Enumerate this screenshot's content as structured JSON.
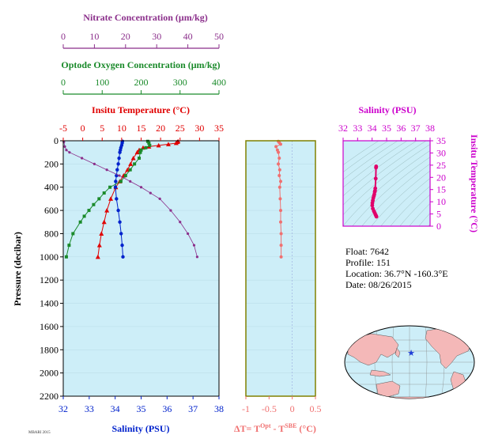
{
  "colors": {
    "nitrate": "#8b2f8b",
    "oxygen": "#1a8a2a",
    "temperature": "#e00000",
    "salinity": "#0022cc",
    "delta_t": "#f07070",
    "ts_axis": "#cc00cc",
    "panel_bg": "#cdeef8",
    "frame_olive": "#808000",
    "land": "#f4b8b8",
    "ocean": "#cdeef8"
  },
  "labels": {
    "nitrate_title": "Nitrate Concentration (μm/kg)",
    "oxygen_title": "Optode Oxygen Concentration (μm/kg)",
    "temperature_title": "Insitu Temperature (°C)",
    "pressure_title": "Pressure (decibar)",
    "salinity_title": "Salinity (PSU)",
    "dt_title_main": "ΔT= T",
    "dt_title_sup1": "Opt",
    "dt_title_mid": " - T",
    "dt_title_sup2": "SBE",
    "dt_title_unit": " (°C)",
    "ts_salinity_title": "Salinity (PSU)",
    "ts_temperature_title": "Insitu Temperature (°C)",
    "footer_stamp": "MBARI 2015"
  },
  "info": {
    "float_line": "Float:  7642",
    "profile_line": "Profile:  151",
    "location_line": "Location:  36.7°N  -160.3°E",
    "date_line": "Date:  08/26/2015"
  },
  "chart_data": [
    {
      "type": "line",
      "title": "",
      "ylabel": "Pressure (decibar)",
      "ylim": [
        2200,
        0
      ],
      "yticks": [
        0,
        200,
        400,
        600,
        800,
        1000,
        1200,
        1400,
        1600,
        1800,
        2000,
        2200
      ],
      "axes": {
        "nitrate": {
          "label": "Nitrate Concentration (μm/kg)",
          "range": [
            0,
            50
          ],
          "ticks": [
            0,
            10,
            20,
            30,
            40,
            50
          ]
        },
        "oxygen": {
          "label": "Optode Oxygen Concentration (μm/kg)",
          "range": [
            0,
            400
          ],
          "ticks": [
            0,
            100,
            200,
            300,
            400
          ]
        },
        "temperature": {
          "label": "Insitu Temperature (°C)",
          "range": [
            -5,
            35
          ],
          "ticks": [
            -5,
            0,
            5,
            10,
            15,
            20,
            25,
            30,
            35
          ]
        },
        "salinity": {
          "label": "Salinity (PSU)",
          "range": [
            32,
            38
          ],
          "ticks": [
            32,
            33,
            34,
            35,
            36,
            37,
            38
          ]
        }
      },
      "series": [
        {
          "name": "Insitu Temperature (°C)",
          "axis": "temperature",
          "marker": "triangle",
          "pressure": [
            5,
            10,
            20,
            30,
            40,
            50,
            60,
            80,
            100,
            150,
            200,
            250,
            300,
            350,
            400,
            500,
            600,
            700,
            800,
            900,
            1000
          ],
          "values": [
            24.5,
            24.3,
            24.0,
            22.0,
            19.5,
            17.0,
            15.5,
            14.5,
            14.0,
            13.0,
            12.3,
            11.5,
            10.5,
            9.5,
            8.5,
            7.2,
            6.2,
            5.5,
            4.8,
            4.3,
            3.9
          ]
        },
        {
          "name": "Salinity (PSU)",
          "axis": "salinity",
          "marker": "dot",
          "pressure": [
            5,
            20,
            40,
            60,
            80,
            100,
            150,
            200,
            250,
            300,
            350,
            400,
            500,
            600,
            700,
            800,
            900,
            1000
          ],
          "values": [
            34.28,
            34.27,
            34.25,
            34.22,
            34.2,
            34.18,
            34.15,
            34.12,
            34.08,
            34.05,
            34.02,
            34.01,
            34.05,
            34.12,
            34.18,
            34.23,
            34.27,
            34.3
          ]
        },
        {
          "name": "Optode Oxygen Concentration (μm/kg)",
          "axis": "oxygen",
          "marker": "square",
          "pressure": [
            5,
            20,
            40,
            60,
            80,
            100,
            150,
            200,
            250,
            300,
            350,
            400,
            450,
            500,
            550,
            600,
            650,
            700,
            800,
            900,
            1000
          ],
          "values": [
            217,
            220,
            222,
            212,
            200,
            198,
            195,
            183,
            172,
            160,
            148,
            120,
            105,
            92,
            78,
            66,
            54,
            44,
            25,
            15,
            8
          ]
        },
        {
          "name": "Nitrate Concentration (μm/kg)",
          "axis": "nitrate",
          "marker": "dot",
          "pressure": [
            10,
            50,
            80,
            100,
            150,
            200,
            250,
            300,
            350,
            400,
            450,
            500,
            600,
            700,
            800,
            900,
            1000
          ],
          "values": [
            0.2,
            0.5,
            1.0,
            2.0,
            6.0,
            10.0,
            14.0,
            18.0,
            21.5,
            25.0,
            28.0,
            31.0,
            34.5,
            37.5,
            40.0,
            42.0,
            43.0
          ]
        }
      ]
    },
    {
      "type": "line",
      "title": "",
      "xlabel": "ΔT= TOpt - TSBE (°C)",
      "xlim": [
        -1.0,
        0.5
      ],
      "xticks": [
        -1.0,
        -0.5,
        0.0,
        0.5
      ],
      "ylim": [
        2200,
        0
      ],
      "series": [
        {
          "name": "ΔT",
          "pressure": [
            5,
            15,
            30,
            50,
            80,
            100,
            150,
            200,
            250,
            300,
            350,
            400,
            500,
            600,
            700,
            800,
            900,
            1000
          ],
          "values": [
            -0.3,
            -0.28,
            -0.25,
            -0.35,
            -0.32,
            -0.3,
            -0.28,
            -0.3,
            -0.27,
            -0.28,
            -0.25,
            -0.27,
            -0.26,
            -0.25,
            -0.25,
            -0.24,
            -0.24,
            -0.24
          ]
        }
      ]
    },
    {
      "type": "scatter",
      "title": "",
      "xlabel": "Salinity (PSU)",
      "ylabel": "Insitu Temperature (°C)",
      "xlim": [
        32,
        38
      ],
      "ylim": [
        0,
        35
      ],
      "xticks": [
        32,
        33,
        34,
        35,
        36,
        37,
        38
      ],
      "yticks": [
        0,
        5,
        10,
        15,
        20,
        25,
        30,
        35
      ],
      "density_contours": true,
      "points": {
        "x": [
          34.28,
          34.27,
          34.25,
          34.22,
          34.2,
          34.18,
          34.15,
          34.12,
          34.08,
          34.05,
          34.02,
          34.01,
          34.05,
          34.12,
          34.18,
          34.23,
          34.27,
          34.3
        ],
        "y": [
          24.5,
          24.0,
          19.5,
          15.5,
          14.5,
          14.0,
          13.0,
          12.3,
          11.5,
          10.5,
          9.5,
          8.5,
          7.2,
          6.2,
          5.5,
          4.8,
          4.3,
          3.9
        ]
      }
    }
  ]
}
